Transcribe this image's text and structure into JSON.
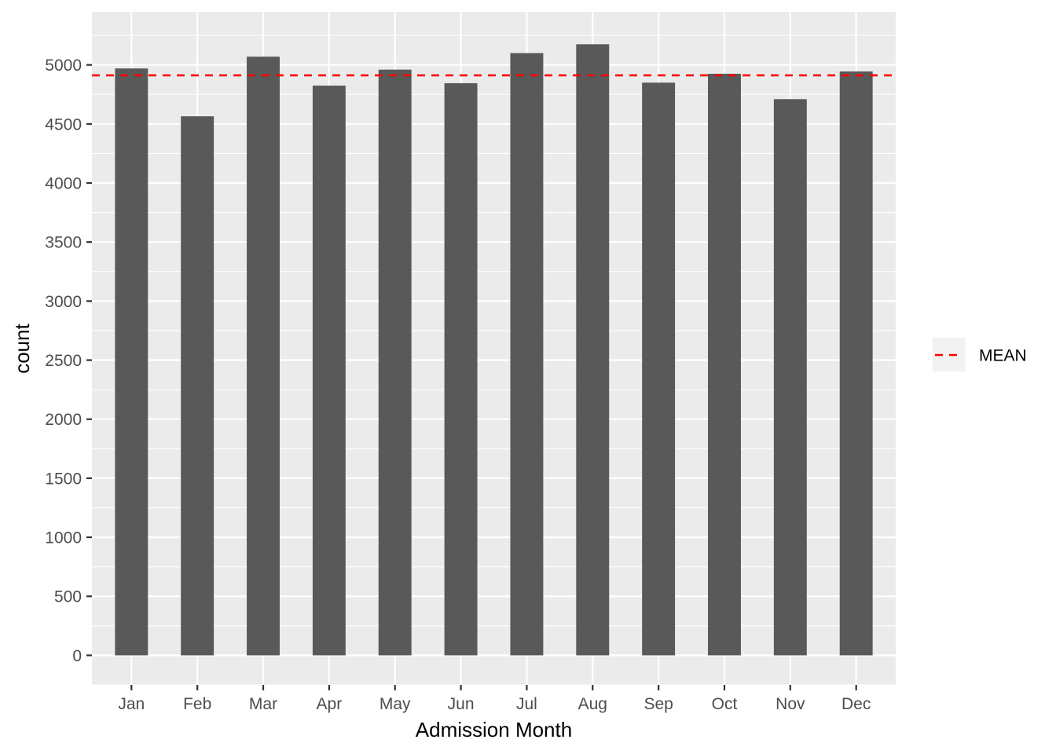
{
  "chart_data": {
    "type": "bar",
    "title": "",
    "xlabel": "Admission Month",
    "ylabel": "count",
    "categories": [
      "Jan",
      "Feb",
      "Mar",
      "Apr",
      "May",
      "Jun",
      "Jul",
      "Aug",
      "Sep",
      "Oct",
      "Nov",
      "Dec"
    ],
    "values": [
      4970,
      4565,
      5070,
      4825,
      4960,
      4845,
      5100,
      5175,
      4850,
      4925,
      4710,
      4945
    ],
    "ylim": [
      -250,
      5450
    ],
    "yticks": [
      0,
      500,
      1000,
      1500,
      2000,
      2500,
      3000,
      3500,
      4000,
      4500,
      5000
    ],
    "ytick_labels": [
      "0",
      "500",
      "1000",
      "1500",
      "2000",
      "2500",
      "3000",
      "3500",
      "4000",
      "4500",
      "5000"
    ],
    "grid": true,
    "bar_color": "#595959",
    "panel_background": "#ebebeb",
    "reference_line": {
      "value": 4911.7,
      "style": "dashed",
      "color": "#ff0000"
    },
    "legend": {
      "placement": "right",
      "entries": [
        {
          "label": "MEAN",
          "style": "dashed",
          "color": "#ff0000"
        }
      ]
    }
  }
}
